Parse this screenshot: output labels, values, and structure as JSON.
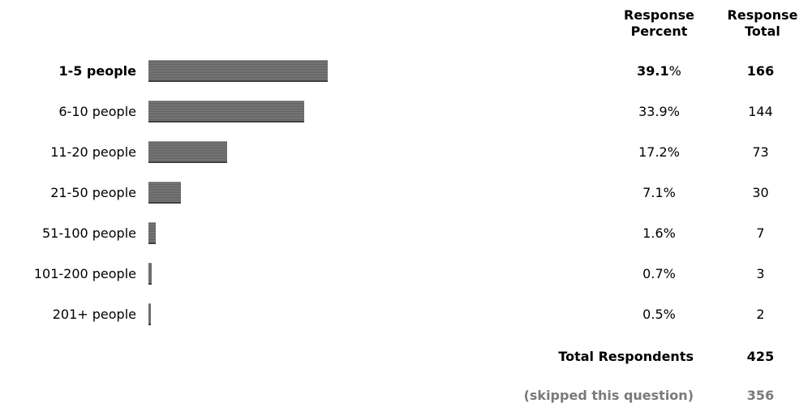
{
  "headers": {
    "percent_line1": "Response",
    "percent_line2": "Percent",
    "total_line1": "Response",
    "total_line2": "Total"
  },
  "chart_data": {
    "type": "bar",
    "orientation": "horizontal",
    "categories": [
      "1-5 people",
      "6-10 people",
      "11-20 people",
      "21-50 people",
      "51-100 people",
      "101-200 people",
      "201+ people"
    ],
    "percent_labels": [
      "39.1",
      "33.9%",
      "17.2%",
      "7.1%",
      "1.6%",
      "0.7%",
      "0.5%"
    ],
    "values": [
      39.1,
      33.9,
      17.2,
      7.1,
      1.6,
      0.7,
      0.5
    ],
    "totals": [
      "166",
      "144",
      "73",
      "30",
      "7",
      "3",
      "2"
    ],
    "highlight_index": 0,
    "bar_color": "#6e6e6e",
    "xlim": [
      0,
      100
    ]
  },
  "summary": {
    "respondents_label": "Total Respondents",
    "respondents_value": "425",
    "skipped_label": "(skipped this question)",
    "skipped_value": "356"
  },
  "colors": {
    "text": "#000000",
    "muted": "#7a7a7a"
  }
}
